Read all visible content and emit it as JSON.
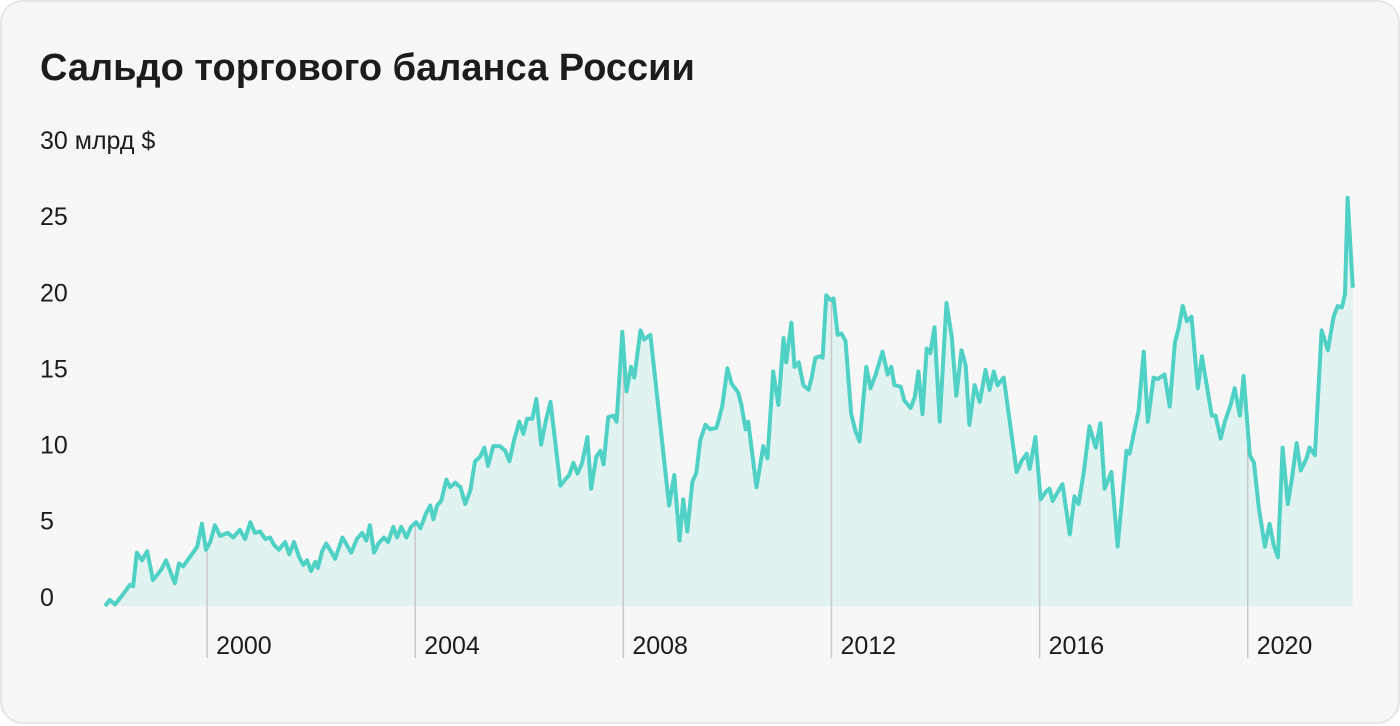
{
  "chart_data": {
    "type": "area-line",
    "title": "Сальдо торгового баланса России",
    "color": "#4fd1c5",
    "fill": "#e0f3f1",
    "xlim": [
      1998,
      2022.1
    ],
    "ylim": [
      -0.6,
      30
    ],
    "xticks": [
      2000,
      2004,
      2008,
      2012,
      2016,
      2020
    ],
    "yticks": [
      0,
      5,
      10,
      15,
      20,
      25,
      {
        "value": 30,
        "label": "30 млрд $"
      }
    ],
    "x": [
      1998.04,
      1998.13,
      1998.23,
      1998.37,
      1998.52,
      1998.58,
      1998.65,
      1998.75,
      1998.85,
      1998.96,
      1999.12,
      1999.21,
      1999.38,
      1999.46,
      1999.54,
      1999.73,
      1999.81,
      1999.9,
      1999.98,
      2000.06,
      2000.15,
      2000.25,
      2000.4,
      2000.5,
      2000.63,
      2000.73,
      2000.83,
      2000.92,
      2001.02,
      2001.12,
      2001.21,
      2001.29,
      2001.38,
      2001.5,
      2001.58,
      2001.67,
      2001.77,
      2001.85,
      2001.92,
      2002.0,
      2002.08,
      2002.13,
      2002.21,
      2002.29,
      2002.38,
      2002.46,
      2002.6,
      2002.67,
      2002.77,
      2002.88,
      2002.98,
      2003.06,
      2003.13,
      2003.21,
      2003.29,
      2003.4,
      2003.48,
      2003.58,
      2003.65,
      2003.73,
      2003.83,
      2003.92,
      2004.02,
      2004.1,
      2004.21,
      2004.29,
      2004.35,
      2004.42,
      2004.5,
      2004.6,
      2004.67,
      2004.77,
      2004.87,
      2004.96,
      2005.06,
      2005.15,
      2005.25,
      2005.33,
      2005.4,
      2005.5,
      2005.63,
      2005.73,
      2005.81,
      2005.9,
      2006.0,
      2006.08,
      2006.15,
      2006.25,
      2006.33,
      2006.42,
      2006.52,
      2006.6,
      2006.69,
      2006.79,
      2006.88,
      2006.96,
      2007.04,
      2007.12,
      2007.21,
      2007.31,
      2007.38,
      2007.48,
      2007.56,
      2007.62,
      2007.71,
      2007.81,
      2007.87,
      2007.98,
      2008.06,
      2008.15,
      2008.21,
      2008.33,
      2008.4,
      2008.52,
      2008.88,
      2008.98,
      2009.08,
      2009.15,
      2009.23,
      2009.33,
      2009.4,
      2009.48,
      2009.58,
      2009.67,
      2009.79,
      2009.9,
      2010.0,
      2010.08,
      2010.21,
      2010.27,
      2010.35,
      2010.4,
      2010.56,
      2010.69,
      2010.77,
      2010.88,
      2010.98,
      2011.08,
      2011.13,
      2011.23,
      2011.29,
      2011.37,
      2011.46,
      2011.56,
      2011.62,
      2011.69,
      2011.79,
      2011.83,
      2011.9,
      2011.98,
      2012.04,
      2012.12,
      2012.19,
      2012.27,
      2012.38,
      2012.46,
      2012.54,
      2012.67,
      2012.75,
      2012.85,
      2012.98,
      2013.08,
      2013.15,
      2013.21,
      2013.33,
      2013.4,
      2013.52,
      2013.6,
      2013.67,
      2013.75,
      2013.83,
      2013.9,
      2013.98,
      2014.08,
      2014.21,
      2014.31,
      2014.4,
      2014.5,
      2014.58,
      2014.65,
      2014.75,
      2014.85,
      2014.96,
      2015.04,
      2015.12,
      2015.19,
      2015.31,
      2015.56,
      2015.65,
      2015.75,
      2015.81,
      2015.92,
      2016.02,
      2016.12,
      2016.19,
      2016.25,
      2016.37,
      2016.44,
      2016.58,
      2016.67,
      2016.75,
      2016.85,
      2016.96,
      2017.08,
      2017.17,
      2017.25,
      2017.38,
      2017.5,
      2017.67,
      2017.73,
      2017.9,
      2018.0,
      2018.08,
      2018.19,
      2018.27,
      2018.4,
      2018.5,
      2018.6,
      2018.67,
      2018.75,
      2018.83,
      2018.92,
      2019.04,
      2019.12,
      2019.31,
      2019.38,
      2019.48,
      2019.56,
      2019.67,
      2019.75,
      2019.85,
      2019.92,
      2020.04,
      2020.12,
      2020.21,
      2020.33,
      2020.42,
      2020.5,
      2020.58,
      2020.67,
      2020.77,
      2020.85,
      2020.94,
      2021.02,
      2021.13,
      2021.19,
      2021.29,
      2021.42,
      2021.54,
      2021.65,
      2021.73,
      2021.81,
      2021.87,
      2021.92,
      2022.02
    ],
    "values": [
      -0.6,
      -0.2,
      -0.5,
      0.1,
      0.8,
      0.7,
      2.9,
      2.4,
      3.0,
      1.1,
      1.8,
      2.4,
      0.9,
      2.2,
      2.0,
      2.9,
      3.3,
      4.8,
      3.1,
      3.6,
      4.7,
      4.0,
      4.2,
      3.9,
      4.4,
      3.8,
      4.9,
      4.2,
      4.3,
      3.8,
      3.9,
      3.4,
      3.1,
      3.6,
      2.8,
      3.6,
      2.6,
      2.1,
      2.4,
      1.7,
      2.3,
      1.9,
      3.0,
      3.5,
      3.0,
      2.5,
      3.9,
      3.5,
      2.9,
      3.8,
      4.2,
      3.7,
      4.7,
      2.9,
      3.5,
      3.9,
      3.6,
      4.6,
      3.9,
      4.6,
      3.9,
      4.6,
      4.9,
      4.5,
      5.5,
      6.0,
      5.1,
      6.0,
      6.3,
      7.7,
      7.2,
      7.5,
      7.2,
      6.1,
      7.0,
      8.9,
      9.2,
      9.8,
      8.6,
      9.9,
      9.9,
      9.6,
      8.9,
      10.3,
      11.5,
      10.7,
      11.7,
      11.7,
      13.0,
      10.0,
      11.7,
      12.8,
      10.2,
      7.3,
      7.7,
      8.0,
      8.8,
      8.1,
      8.8,
      10.5,
      7.1,
      9.2,
      9.6,
      8.7,
      11.8,
      11.9,
      11.5,
      17.4,
      13.5,
      15.1,
      14.4,
      17.5,
      16.9,
      17.2,
      6.0,
      8.0,
      3.7,
      6.4,
      4.3,
      7.6,
      8.1,
      10.3,
      11.3,
      11.0,
      11.1,
      12.5,
      15.0,
      14.0,
      13.4,
      12.6,
      11.0,
      11.5,
      7.2,
      9.9,
      9.1,
      14.8,
      12.6,
      17.0,
      15.4,
      18.0,
      15.1,
      15.4,
      13.9,
      13.6,
      14.4,
      15.7,
      15.8,
      15.7,
      19.8,
      19.5,
      19.6,
      17.2,
      17.3,
      16.8,
      12.0,
      10.9,
      10.2,
      15.1,
      13.7,
      14.6,
      16.1,
      14.6,
      15.1,
      13.9,
      13.8,
      12.9,
      12.4,
      13.1,
      14.8,
      12.0,
      16.3,
      16.0,
      17.7,
      11.5,
      19.3,
      17.1,
      13.2,
      16.2,
      15.2,
      11.3,
      13.9,
      12.8,
      14.9,
      13.6,
      14.8,
      13.9,
      14.4,
      8.2,
      8.9,
      9.4,
      8.4,
      10.5,
      6.4,
      6.9,
      7.1,
      6.3,
      7.0,
      7.4,
      4.1,
      6.6,
      6.1,
      8.2,
      11.2,
      9.8,
      11.4,
      7.1,
      8.2,
      3.3,
      9.6,
      9.4,
      12.2,
      16.1,
      11.5,
      14.4,
      14.3,
      14.6,
      12.5,
      16.7,
      17.6,
      19.1,
      18.1,
      18.4,
      13.7,
      15.8,
      11.9,
      11.9,
      10.4,
      11.5,
      12.6,
      13.7,
      11.9,
      14.5,
      9.3,
      8.8,
      5.9,
      3.3,
      4.8,
      3.4,
      2.6,
      9.8,
      6.1,
      7.8,
      10.1,
      8.3,
      9.1,
      9.8,
      9.3,
      17.5,
      16.2,
      18.4,
      19.1,
      19.0,
      19.9,
      26.2,
      20.3
    ]
  }
}
